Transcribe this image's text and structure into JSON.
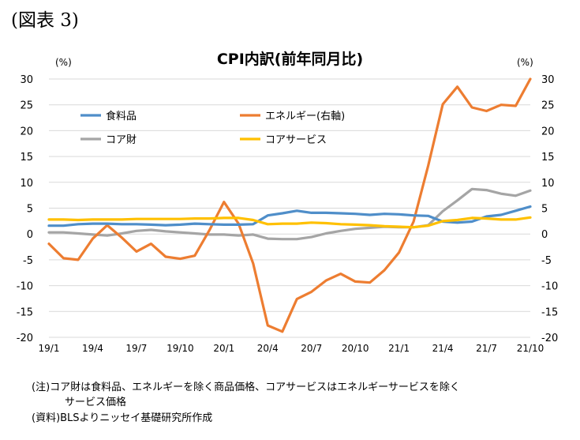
{
  "figure_label": "(図表 3)",
  "chart_data": {
    "type": "line",
    "title": "CPI内訳(前年同月比)",
    "y_unit_left": "(%)",
    "y_unit_right": "(%)",
    "ylim_left": [
      -20,
      30
    ],
    "ylim_right": [
      -20,
      30
    ],
    "y_ticks": [
      30,
      25,
      20,
      15,
      10,
      5,
      0,
      -5,
      -10,
      -15,
      -20
    ],
    "categories": [
      "19/1",
      "19/2",
      "19/3",
      "19/4",
      "19/5",
      "19/6",
      "19/7",
      "19/8",
      "19/9",
      "19/10",
      "19/11",
      "19/12",
      "20/1",
      "20/2",
      "20/3",
      "20/4",
      "20/5",
      "20/6",
      "20/7",
      "20/8",
      "20/9",
      "20/10",
      "20/11",
      "20/12",
      "21/1",
      "21/2",
      "21/3",
      "21/4",
      "21/5",
      "21/6",
      "21/7",
      "21/8",
      "21/9",
      "21/10"
    ],
    "x_tick_labels": [
      "19/1",
      "19/4",
      "19/7",
      "19/10",
      "20/1",
      "20/4",
      "20/7",
      "20/10",
      "21/1",
      "21/4",
      "21/7",
      "21/10"
    ],
    "grid": "horizontal",
    "legend_placement": "top-left",
    "series": [
      {
        "name": "食料品",
        "color": "#4f8ec9",
        "axis": "left",
        "values": [
          1.6,
          1.6,
          1.9,
          2.0,
          2.0,
          1.9,
          1.9,
          1.8,
          1.7,
          1.8,
          2.0,
          1.9,
          1.8,
          1.8,
          1.9,
          3.6,
          4.0,
          4.5,
          4.1,
          4.1,
          4.0,
          3.9,
          3.7,
          3.9,
          3.8,
          3.6,
          3.5,
          2.4,
          2.2,
          2.4,
          3.4,
          3.7,
          4.5,
          5.3
        ]
      },
      {
        "name": "エネルギー(右軸)",
        "color": "#ed7d31",
        "axis": "right",
        "values": [
          -1.9,
          -4.7,
          -5.0,
          -0.9,
          1.7,
          -0.7,
          -3.4,
          -1.9,
          -4.4,
          -4.8,
          -4.2,
          0.7,
          6.2,
          2.0,
          -5.7,
          -17.7,
          -18.9,
          -12.6,
          -11.2,
          -9.0,
          -7.7,
          -9.2,
          -9.4,
          -7.0,
          -3.6,
          2.4,
          13.2,
          25.1,
          28.5,
          24.5,
          23.8,
          25.0,
          24.8,
          30.0
        ]
      },
      {
        "name": "コア財",
        "color": "#a5a5a5",
        "axis": "left",
        "values": [
          0.3,
          0.3,
          0.1,
          -0.1,
          -0.3,
          0.1,
          0.6,
          0.8,
          0.5,
          0.3,
          0.1,
          -0.1,
          -0.1,
          -0.3,
          -0.1,
          -0.9,
          -1.0,
          -1.0,
          -0.6,
          0.1,
          0.6,
          1.0,
          1.2,
          1.4,
          1.3,
          1.3,
          1.7,
          4.4,
          6.5,
          8.7,
          8.5,
          7.8,
          7.4,
          8.4
        ]
      },
      {
        "name": "コアサービス",
        "color": "#ffc000",
        "axis": "left",
        "values": [
          2.8,
          2.8,
          2.7,
          2.8,
          2.8,
          2.8,
          2.9,
          2.9,
          2.9,
          2.9,
          3.0,
          3.0,
          3.1,
          3.1,
          2.7,
          1.9,
          2.0,
          2.0,
          2.2,
          2.1,
          1.9,
          1.8,
          1.7,
          1.5,
          1.4,
          1.3,
          1.6,
          2.5,
          2.7,
          3.1,
          3.0,
          2.8,
          2.8,
          3.2
        ]
      }
    ]
  },
  "notes": {
    "line1": "(注)コア財は食料品、エネルギーを除く商品価格、コアサービスはエネルギーサービスを除く",
    "line2": "サービス価格",
    "line3": "(資料)BLSよりニッセイ基礎研究所作成"
  }
}
